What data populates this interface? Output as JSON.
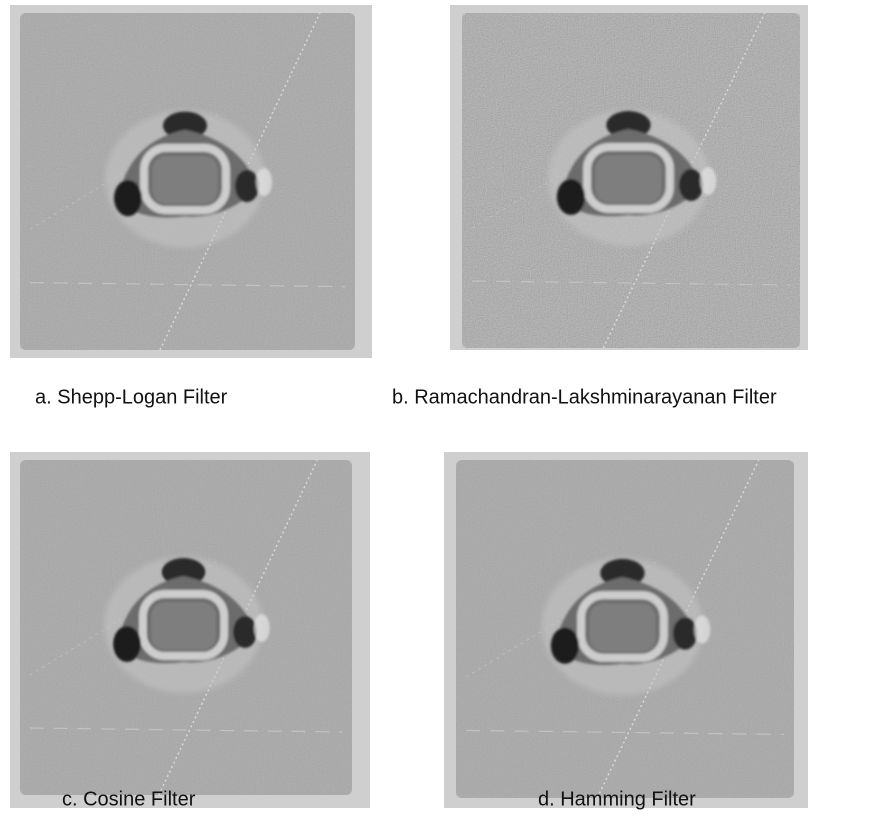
{
  "panels": [
    {
      "caption": "a. Shepp-Logan Filter"
    },
    {
      "caption": "b. Ramachandran-Lakshminarayanan Filter"
    },
    {
      "caption": "c. Cosine Filter"
    },
    {
      "caption": "d. Hamming Filter"
    }
  ]
}
